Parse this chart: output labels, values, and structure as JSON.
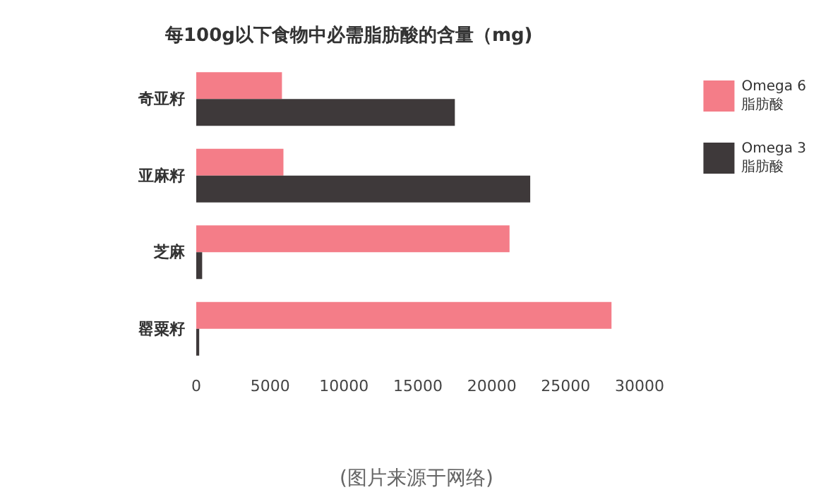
{
  "chart_data": {
    "type": "bar",
    "orientation": "horizontal",
    "title": "每100g以下食物中必需脂肪酸的含量（mg)",
    "categories": [
      "奇亚籽",
      "亚麻籽",
      "芝麻",
      "罂粟籽"
    ],
    "series": [
      {
        "name": "Omega 6 脂肪酸",
        "color": "#f47d88",
        "values": [
          5800,
          5900,
          21200,
          28100
        ]
      },
      {
        "name": "Omega 3 脂肪酸",
        "color": "#3e393a",
        "values": [
          17500,
          22600,
          400,
          200
        ]
      }
    ],
    "xlim": [
      0,
      30000
    ],
    "xticks": [
      0,
      5000,
      10000,
      15000,
      20000,
      25000,
      30000
    ],
    "grid": false,
    "legend": "right",
    "annotations": [
      "(图片来源于网络)"
    ]
  }
}
